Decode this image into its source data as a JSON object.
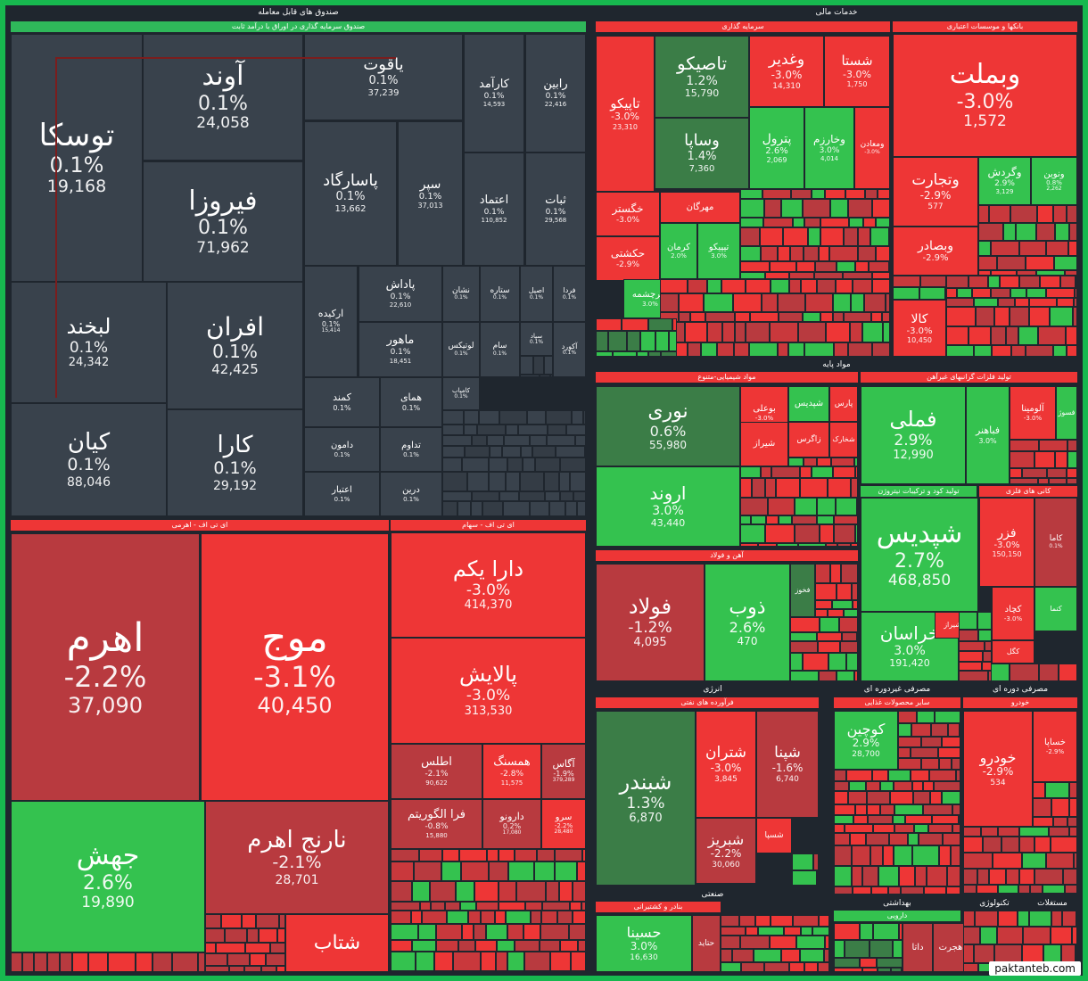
{
  "colors": {
    "gray": "#39424c",
    "red": "#ee3636",
    "darkred": "#b83a3f",
    "green": "#34c24f",
    "darkgreen": "#3b7d47",
    "bg": "#1f262e"
  },
  "sectors": [
    {
      "label": "صندوق های قابل معامله"
    },
    {
      "label": "صندوق سرمایه گذاری در اوراق با درآمد ثابت"
    },
    {
      "label": "ای تی اف - اهرمی"
    },
    {
      "label": "ای تی اف - سهام"
    },
    {
      "label": "خدمات مالی"
    },
    {
      "label": "سرمایه گذاری"
    },
    {
      "label": "بانکها و موسسات اعتباری"
    },
    {
      "label": "مواد پایه"
    },
    {
      "label": "مواد شیمیایی-متنوع"
    },
    {
      "label": "تولید فلزات گرانبهای غیرآهن"
    },
    {
      "label": "آهن و فولاد"
    },
    {
      "label": "تولید کود و ترکیبات نیتروژن"
    },
    {
      "label": "کانی های فلزی"
    },
    {
      "label": "انرژی"
    },
    {
      "label": "فرآورده های نفتی"
    },
    {
      "label": "مصرفی غیردوره ای"
    },
    {
      "label": "سایر محصولات غذایی"
    },
    {
      "label": "مصرفی دوره ای"
    },
    {
      "label": "خودرو"
    },
    {
      "label": "صنعتی"
    },
    {
      "label": "بنادر و کشتیرانی"
    },
    {
      "label": "بهداشتی"
    },
    {
      "label": "دارویی"
    },
    {
      "label": "تکنولوژی"
    },
    {
      "label": "مستغلات"
    }
  ],
  "tiles": [
    {
      "name": "توسکا",
      "pct": "0.1%",
      "val": "19,168",
      "color": "gray"
    },
    {
      "name": "آوند",
      "pct": "0.1%",
      "val": "24,058",
      "color": "gray"
    },
    {
      "name": "یاقوت",
      "pct": "0.1%",
      "val": "37,239",
      "color": "gray"
    },
    {
      "name": "کارآمد",
      "pct": "0.1%",
      "val": "14,593",
      "color": "gray"
    },
    {
      "name": "رابین",
      "pct": "0.1%",
      "val": "22,416",
      "color": "gray"
    },
    {
      "name": "فیروزا",
      "pct": "0.1%",
      "val": "71,962",
      "color": "gray"
    },
    {
      "name": "پاسارگاد",
      "pct": "0.1%",
      "val": "13,662",
      "color": "gray"
    },
    {
      "name": "سپر",
      "pct": "0.1%",
      "val": "37,013",
      "color": "gray"
    },
    {
      "name": "اعتماد",
      "pct": "0.1%",
      "val": "110,852",
      "color": "gray"
    },
    {
      "name": "ثبات",
      "pct": "0.1%",
      "val": "29,568",
      "color": "gray"
    },
    {
      "name": "لبخند",
      "pct": "0.1%",
      "val": "24,342",
      "color": "gray"
    },
    {
      "name": "افران",
      "pct": "0.1%",
      "val": "42,425",
      "color": "gray"
    },
    {
      "name": "پاداش",
      "pct": "0.1%",
      "val": "22,610",
      "color": "gray"
    },
    {
      "name": "ارکیده",
      "pct": "0.1%",
      "val": "15,414",
      "color": "gray"
    },
    {
      "name": "نشان",
      "pct": "0.1%",
      "val": "",
      "color": "gray"
    },
    {
      "name": "ستاره",
      "pct": "0.1%",
      "val": "",
      "color": "gray"
    },
    {
      "name": "اصیل",
      "pct": "0.1%",
      "val": "",
      "color": "gray"
    },
    {
      "name": "فردا",
      "pct": "0.1%",
      "val": "",
      "color": "gray"
    },
    {
      "name": "ماهور",
      "pct": "0.1%",
      "val": "18,451",
      "color": "gray"
    },
    {
      "name": "لوتیکس",
      "pct": "0.1%",
      "val": "",
      "color": "gray"
    },
    {
      "name": "سام",
      "pct": "0.1%",
      "val": "",
      "color": "gray"
    },
    {
      "name": "سپاد",
      "pct": "0.1%",
      "val": "",
      "color": "gray"
    },
    {
      "name": "آکورد",
      "pct": "0.1%",
      "val": "",
      "color": "gray"
    },
    {
      "name": "کیان",
      "pct": "0.1%",
      "val": "88,046",
      "color": "gray"
    },
    {
      "name": "کارا",
      "pct": "0.1%",
      "val": "29,192",
      "color": "gray"
    },
    {
      "name": "کمند",
      "pct": "0.1%",
      "val": "",
      "color": "gray"
    },
    {
      "name": "همای",
      "pct": "0.1%",
      "val": "",
      "color": "gray"
    },
    {
      "name": "کامیاب",
      "pct": "0.1%",
      "val": "",
      "color": "gray"
    },
    {
      "name": "دامون",
      "pct": "0.1%",
      "val": "",
      "color": "gray"
    },
    {
      "name": "تداوم",
      "pct": "0.1%",
      "val": "",
      "color": "gray"
    },
    {
      "name": "اعتبار",
      "pct": "0.1%",
      "val": "",
      "color": "gray"
    },
    {
      "name": "درین",
      "pct": "0.1%",
      "val": "",
      "color": "gray"
    },
    {
      "name": "اهرم",
      "pct": "-2.2%",
      "val": "37,090",
      "color": "darkred"
    },
    {
      "name": "موج",
      "pct": "-3.1%",
      "val": "40,450",
      "color": "red"
    },
    {
      "name": "دارا یکم",
      "pct": "-3.0%",
      "val": "414,370",
      "color": "red"
    },
    {
      "name": "پالایش",
      "pct": "-3.0%",
      "val": "313,530",
      "color": "red"
    },
    {
      "name": "اطلس",
      "pct": "-2.1%",
      "val": "90,622",
      "color": "darkred"
    },
    {
      "name": "همسنگ",
      "pct": "-2.8%",
      "val": "11,575",
      "color": "red"
    },
    {
      "name": "آگاس",
      "pct": "-1.9%",
      "val": "379,289",
      "color": "darkred"
    },
    {
      "name": "فرا الگوریتم",
      "pct": "-0.8%",
      "val": "15,880",
      "color": "darkred"
    },
    {
      "name": "دارونو",
      "pct": "0.2%",
      "val": "17,080",
      "color": "darkred"
    },
    {
      "name": "سرو",
      "pct": "-2.2%",
      "val": "28,480",
      "color": "red"
    },
    {
      "name": "جهش",
      "pct": "2.6%",
      "val": "19,890",
      "color": "green"
    },
    {
      "name": "نارنج اهرم",
      "pct": "-2.1%",
      "val": "28,701",
      "color": "darkred"
    },
    {
      "name": "شتاب",
      "pct": "",
      "val": "",
      "color": "red"
    },
    {
      "name": "تاپیکو",
      "pct": "-3.0%",
      "val": "23,310",
      "color": "red"
    },
    {
      "name": "تاصیکو",
      "pct": "1.2%",
      "val": "15,790",
      "color": "darkgreen"
    },
    {
      "name": "وغدیر",
      "pct": "-3.0%",
      "val": "14,310",
      "color": "red"
    },
    {
      "name": "شستا",
      "pct": "-3.0%",
      "val": "1,750",
      "color": "red"
    },
    {
      "name": "وساپا",
      "pct": "1.4%",
      "val": "7,360",
      "color": "darkgreen"
    },
    {
      "name": "پترول",
      "pct": "2.6%",
      "val": "2,069",
      "color": "green"
    },
    {
      "name": "وخارزم",
      "pct": "3.0%",
      "val": "4,014",
      "color": "green"
    },
    {
      "name": "ومعادن",
      "pct": "-3.0%",
      "val": "",
      "color": "red"
    },
    {
      "name": "وبملت",
      "pct": "-3.0%",
      "val": "1,572",
      "color": "red"
    },
    {
      "name": "وتجارت",
      "pct": "-2.9%",
      "val": "577",
      "color": "red"
    },
    {
      "name": "وگردش",
      "pct": "2.9%",
      "val": "3,129",
      "color": "green"
    },
    {
      "name": "ونوین",
      "pct": "0.8%",
      "val": "2,262",
      "color": "green"
    },
    {
      "name": "وبصادر",
      "pct": "-2.9%",
      "val": "",
      "color": "red"
    },
    {
      "name": "خگستر",
      "pct": "-3.0%",
      "val": "",
      "color": "red"
    },
    {
      "name": "مهرگان",
      "pct": "",
      "val": "",
      "color": "red"
    },
    {
      "name": "حکشتی",
      "pct": "-2.9%",
      "val": "",
      "color": "red"
    },
    {
      "name": "کرمان",
      "pct": "2.0%",
      "val": "",
      "color": "green"
    },
    {
      "name": "تیپیکو",
      "pct": "3.0%",
      "val": "",
      "color": "green"
    },
    {
      "name": "سرچشمه",
      "pct": "3.0%",
      "val": "",
      "color": "green"
    },
    {
      "name": "ورنا",
      "pct": "0.3%",
      "val": "",
      "color": "darkred"
    },
    {
      "name": "کالا",
      "pct": "-3.0%",
      "val": "10,450",
      "color": "red"
    },
    {
      "name": "نوری",
      "pct": "0.6%",
      "val": "55,980",
      "color": "darkgreen"
    },
    {
      "name": "بوعلی",
      "pct": "-3.0%",
      "val": "",
      "color": "red"
    },
    {
      "name": "شپدیس",
      "pct": "",
      "val": "",
      "color": "green"
    },
    {
      "name": "پارس",
      "pct": "",
      "val": "",
      "color": "red"
    },
    {
      "name": "شیراز",
      "pct": "",
      "val": "",
      "color": "red"
    },
    {
      "name": "زاگرس",
      "pct": "",
      "val": "",
      "color": "red"
    },
    {
      "name": "شخارک",
      "pct": "",
      "val": "",
      "color": "red"
    },
    {
      "name": "اروند",
      "pct": "3.0%",
      "val": "43,440",
      "color": "green"
    },
    {
      "name": "فملی",
      "pct": "2.9%",
      "val": "12,990",
      "color": "green"
    },
    {
      "name": "آلومینا",
      "pct": "-3.0%",
      "val": "",
      "color": "red"
    },
    {
      "name": "فباهنر",
      "pct": "3.0%",
      "val": "",
      "color": "green"
    },
    {
      "name": "فسوژ",
      "pct": "",
      "val": "",
      "color": "green"
    },
    {
      "name": "فولاد",
      "pct": "-1.2%",
      "val": "4,095",
      "color": "darkred"
    },
    {
      "name": "ذوب",
      "pct": "2.6%",
      "val": "470",
      "color": "green"
    },
    {
      "name": "فخوز",
      "pct": "",
      "val": "",
      "color": "darkgreen"
    },
    {
      "name": "شپدیس",
      "pct": "2.7%",
      "val": "468,850",
      "color": "green"
    },
    {
      "name": "فزر",
      "pct": "-3.0%",
      "val": "150,150",
      "color": "red"
    },
    {
      "name": "کاما",
      "pct": "0.1%",
      "val": "",
      "color": "darkred"
    },
    {
      "name": "خراسان",
      "pct": "3.0%",
      "val": "191,420",
      "color": "green"
    },
    {
      "name": "شیراز",
      "pct": "",
      "val": "",
      "color": "red"
    },
    {
      "name": "کچاد",
      "pct": "-3.0%",
      "val": "",
      "color": "red"
    },
    {
      "name": "کگل",
      "pct": "",
      "val": "",
      "color": "red"
    },
    {
      "name": "کنما",
      "pct": "",
      "val": "",
      "color": "green"
    },
    {
      "name": "شبندر",
      "pct": "1.3%",
      "val": "6,870",
      "color": "darkgreen"
    },
    {
      "name": "شتران",
      "pct": "-3.0%",
      "val": "3,845",
      "color": "red"
    },
    {
      "name": "شپنا",
      "pct": "-1.6%",
      "val": "6,740",
      "color": "darkred"
    },
    {
      "name": "شبریز",
      "pct": "-2.2%",
      "val": "30,060",
      "color": "darkred"
    },
    {
      "name": "شسپا",
      "pct": "",
      "val": "",
      "color": "red"
    },
    {
      "name": "کوچین",
      "pct": "2.9%",
      "val": "28,700",
      "color": "green"
    },
    {
      "name": "خودرو",
      "pct": "-2.9%",
      "val": "534",
      "color": "red"
    },
    {
      "name": "خساپا",
      "pct": "-2.9%",
      "val": "",
      "color": "red"
    },
    {
      "name": "حسینا",
      "pct": "3.0%",
      "val": "16,630",
      "color": "green"
    },
    {
      "name": "حتاید",
      "pct": "",
      "val": "",
      "color": "darkred"
    },
    {
      "name": "داتا",
      "pct": "",
      "val": "",
      "color": "darkred"
    },
    {
      "name": "هجرت",
      "pct": "",
      "val": "",
      "color": "darkred"
    }
  ],
  "watermark": "paktanteb.com"
}
